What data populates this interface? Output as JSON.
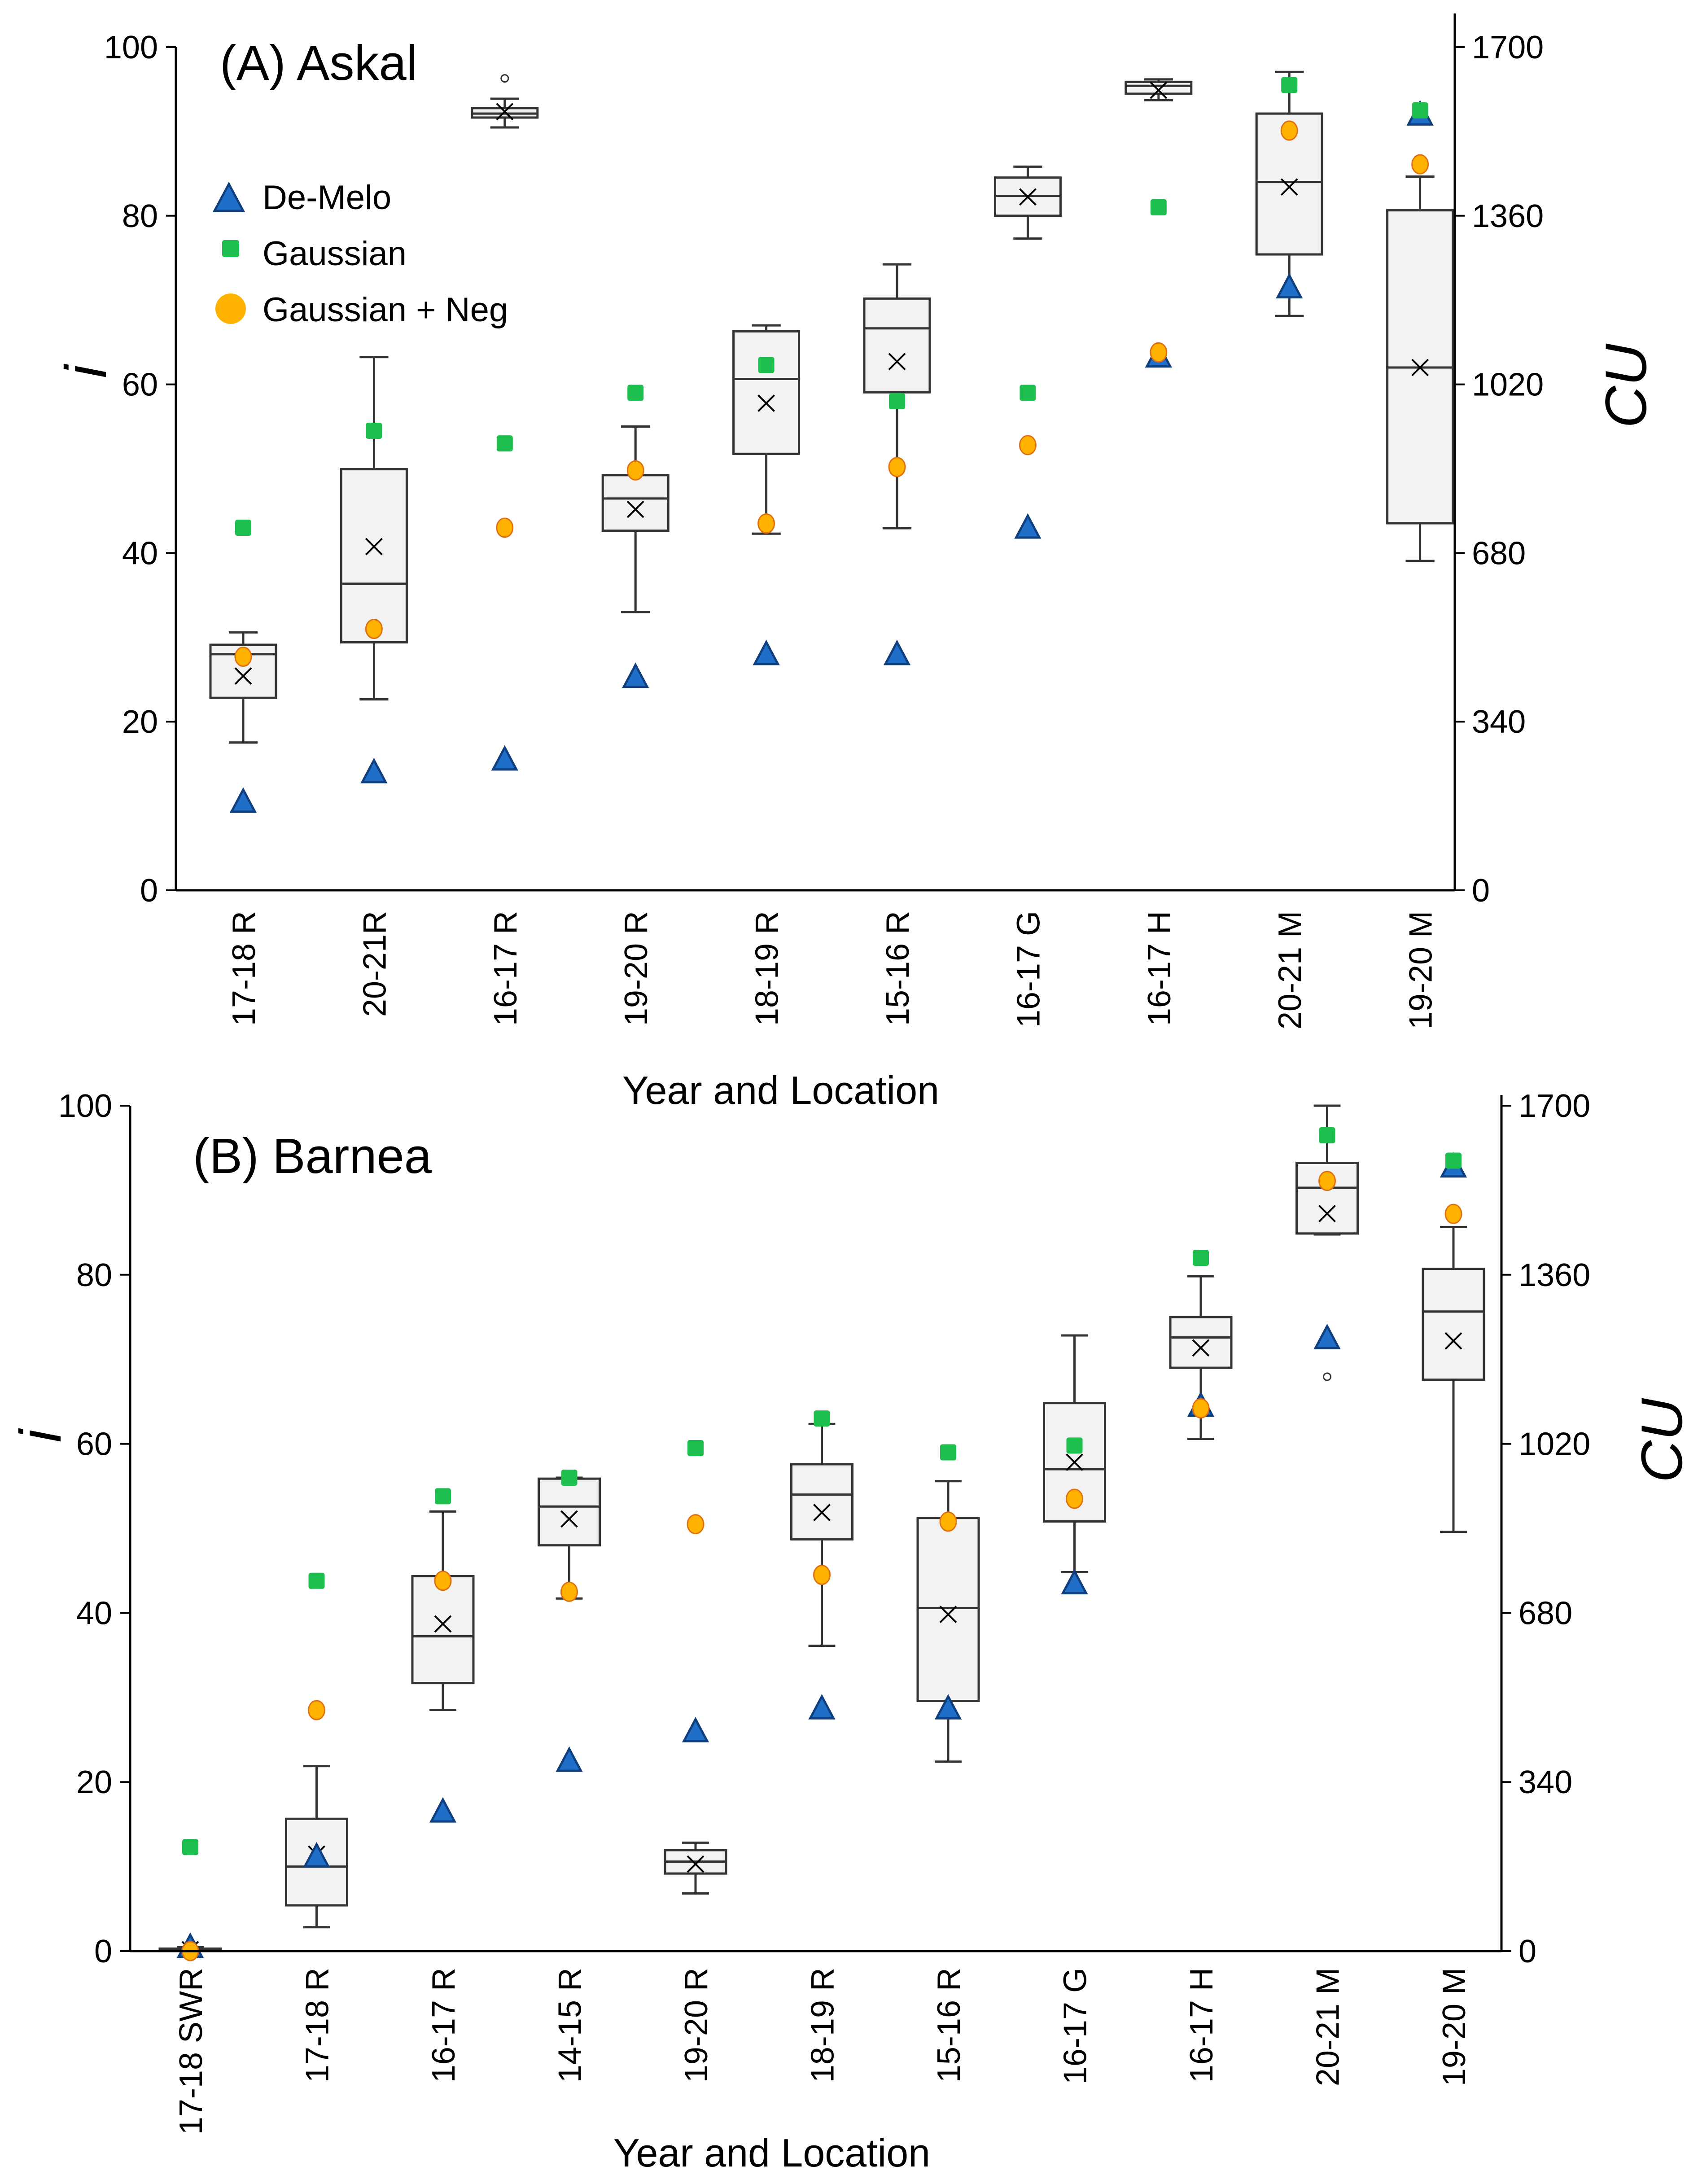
{
  "chart_data": [
    {
      "type": "box",
      "title": "(A) Askal",
      "xlabel": "Year and Location",
      "ylabel": "i",
      "y2label": "CU",
      "ylim": [
        0,
        100
      ],
      "yticks": [
        0,
        20,
        40,
        60,
        80,
        100
      ],
      "y2lim": [
        0,
        1700
      ],
      "y2ticks": [
        0,
        340,
        680,
        1020,
        1360,
        1700
      ],
      "legend_position": "upper-left",
      "legend": [
        {
          "name": "De-Melo",
          "marker": "triangle",
          "color": "#1f6fc8"
        },
        {
          "name": "Gaussian",
          "marker": "square",
          "color": "#1fbf4f"
        },
        {
          "name": "Gaussian + Neg",
          "marker": "circle",
          "color": "#ffb300"
        }
      ],
      "categories": [
        "17-18 R",
        "20-21R",
        "16-17 R",
        "19-20 R",
        "18-19 R",
        "15-16 R",
        "16-17 G",
        "16-17 H",
        "20-21 M",
        "19-20 M"
      ],
      "boxes_cu": [
        {
          "min": 298,
          "q1": 388,
          "median": 476,
          "q3": 495,
          "max": 520,
          "mean": 432,
          "outliers": []
        },
        {
          "min": 385,
          "q1": 500,
          "median": 618,
          "q3": 849,
          "max": 1075,
          "mean": 693,
          "outliers": []
        },
        {
          "min": 1538,
          "q1": 1558,
          "median": 1566,
          "q3": 1577,
          "max": 1596,
          "mean": 1570,
          "outliers": [
            1637
          ]
        },
        {
          "min": 561,
          "q1": 725,
          "median": 790,
          "q3": 837,
          "max": 935,
          "mean": 768,
          "outliers": []
        },
        {
          "min": 719,
          "q1": 880,
          "median": 1031,
          "q3": 1127,
          "max": 1139,
          "mean": 982,
          "outliers": []
        },
        {
          "min": 730,
          "q1": 1004,
          "median": 1133,
          "q3": 1193,
          "max": 1262,
          "mean": 1066,
          "outliers": []
        },
        {
          "min": 1314,
          "q1": 1360,
          "median": 1400,
          "q3": 1437,
          "max": 1459,
          "mean": 1398,
          "outliers": []
        },
        {
          "min": 1593,
          "q1": 1606,
          "median": 1622,
          "q3": 1630,
          "max": 1635,
          "mean": 1613,
          "outliers": []
        },
        {
          "min": 1158,
          "q1": 1282,
          "median": 1428,
          "q3": 1566,
          "max": 1650,
          "mean": 1418,
          "outliers": []
        },
        {
          "min": 664,
          "q1": 740,
          "median": 1054,
          "q3": 1371,
          "max": 1439,
          "mean": 1054,
          "outliers": []
        }
      ],
      "series": [
        {
          "name": "De-Melo",
          "values": [
            10.5,
            14,
            15.5,
            25.3,
            28,
            28,
            43,
            63.3,
            71.5,
            92
          ]
        },
        {
          "name": "Gaussian",
          "values": [
            43,
            54.5,
            53,
            59,
            62.3,
            58,
            59,
            81,
            95.5,
            92.5
          ]
        },
        {
          "name": "Gaussian + Neg",
          "values": [
            27.7,
            31,
            43,
            49.8,
            43.5,
            50.2,
            52.8,
            63.8,
            90.1,
            86.1
          ]
        }
      ]
    },
    {
      "type": "box",
      "title": "(B) Barnea",
      "xlabel": "Year and Location",
      "ylabel": "i",
      "y2label": "CU",
      "ylim": [
        0,
        100
      ],
      "yticks": [
        0,
        20,
        40,
        60,
        80,
        100
      ],
      "y2lim": [
        0,
        1700
      ],
      "y2ticks": [
        0,
        340,
        680,
        1020,
        1360,
        1700
      ],
      "categories": [
        "17-18 SWR",
        "17-18 R",
        "16-17 R",
        "14-15 R",
        "19-20 R",
        "18-19 R",
        "15-16 R",
        "16-17 G",
        "16-17 H",
        "20-21 M",
        "19-20 M"
      ],
      "boxes_cu": [
        {
          "min": 0,
          "q1": 0,
          "median": 2,
          "q3": 5,
          "max": 8,
          "mean": 3,
          "outliers": []
        },
        {
          "min": 48,
          "q1": 92,
          "median": 170,
          "q3": 266,
          "max": 372,
          "mean": 195,
          "outliers": []
        },
        {
          "min": 485,
          "q1": 539,
          "median": 633,
          "q3": 754,
          "max": 884,
          "mean": 658,
          "outliers": []
        },
        {
          "min": 709,
          "q1": 816,
          "median": 894,
          "q3": 950,
          "max": 952,
          "mean": 869,
          "outliers": []
        },
        {
          "min": 116,
          "q1": 156,
          "median": 180,
          "q3": 203,
          "max": 218,
          "mean": 175,
          "outliers": []
        },
        {
          "min": 614,
          "q1": 828,
          "median": 918,
          "q3": 979,
          "max": 1060,
          "mean": 882,
          "outliers": []
        },
        {
          "min": 381,
          "q1": 503,
          "median": 690,
          "q3": 871,
          "max": 945,
          "mean": 677,
          "outliers": []
        },
        {
          "min": 762,
          "q1": 864,
          "median": 969,
          "q3": 1102,
          "max": 1238,
          "mean": 983,
          "outliers": []
        },
        {
          "min": 1030,
          "q1": 1173,
          "median": 1234,
          "q3": 1275,
          "max": 1357,
          "mean": 1213,
          "outliers": []
        },
        {
          "min": 1441,
          "q1": 1443,
          "median": 1535,
          "q3": 1585,
          "max": 1700,
          "mean": 1483,
          "outliers": [
            1155
          ]
        },
        {
          "min": 843,
          "q1": 1149,
          "median": 1286,
          "q3": 1372,
          "max": 1456,
          "mean": 1227,
          "outliers": []
        }
      ],
      "series": [
        {
          "name": "De-Melo",
          "values": [
            0.5,
            11.2,
            16.5,
            22.5,
            26,
            28.7,
            28.7,
            43.5,
            64.5,
            72.5,
            92.8
          ]
        },
        {
          "name": "Gaussian",
          "values": [
            12.3,
            43.8,
            53.8,
            56,
            59.5,
            63,
            59,
            59.8,
            82,
            96.5,
            93.5
          ]
        },
        {
          "name": "Gaussian + Neg",
          "values": [
            0,
            28.5,
            43.8,
            42.5,
            50.5,
            44.5,
            50.8,
            53.5,
            64.2,
            91.1,
            87.2
          ]
        }
      ]
    }
  ]
}
